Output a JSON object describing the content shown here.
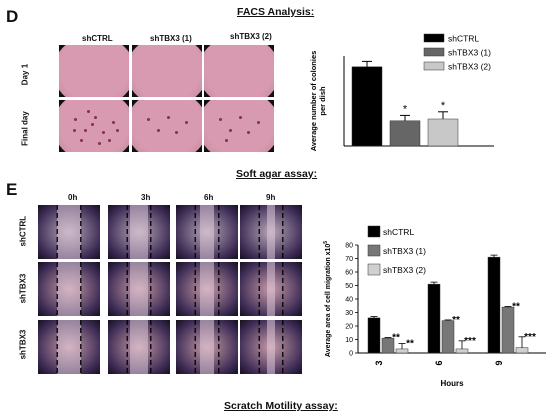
{
  "panel_d": {
    "letter": "D",
    "top_title": "FACS Analysis:",
    "bottom_title": "Soft agar assay:",
    "columns": [
      "shCTRL",
      "shTBX3 (1)",
      "shTBX3 (2)"
    ],
    "rows": [
      "Day 1",
      "Final day"
    ],
    "colors": {
      "plate": "#d79ab0",
      "plate_edge": "#b87c95",
      "colony": "#8a2e4a",
      "bg": "#101010"
    }
  },
  "panel_e": {
    "letter": "E",
    "bottom_title": "Scratch Motility assay:",
    "columns": [
      "0h",
      "3h",
      "6h",
      "9h"
    ],
    "rows": [
      "shCTRL",
      "shTBX3",
      "shTBX3"
    ],
    "colors": {
      "dark": "#3c2b54",
      "light": "#b9a7b8",
      "pink": "#c79aa8"
    }
  },
  "chart_data": [
    {
      "type": "bar",
      "categories": [
        "shCTRL",
        "shTBX3 (1)",
        "shTBX3 (2)"
      ],
      "values": [
        44,
        14,
        15
      ],
      "errors": [
        3,
        3,
        4
      ],
      "colors": [
        "#000000",
        "#666666",
        "#c8c8c8"
      ],
      "annotations": [
        "",
        "*",
        "*"
      ],
      "ylabel": "Average number of colonies per dish",
      "ylim": [
        0,
        50
      ],
      "legend": {
        "placement": "top-right",
        "entries": [
          "shCTRL",
          "shTBX3 (1)",
          "shTBX3 (2)"
        ]
      }
    },
    {
      "type": "bar",
      "categories": [
        "3",
        "6",
        "9"
      ],
      "xlabel": "Hours",
      "ylabel": "Average area of cell migration x10",
      "ylabel_exp": "5",
      "ylim": [
        0,
        80
      ],
      "yticks": [
        0,
        10,
        20,
        30,
        40,
        50,
        60,
        70,
        80
      ],
      "series": [
        {
          "name": "shCTRL",
          "color": "#000000",
          "values": [
            26,
            51,
            71
          ],
          "errors": [
            1,
            1.5,
            1.5
          ],
          "annotations": [
            "",
            "",
            ""
          ]
        },
        {
          "name": "shTBX3 (1)",
          "color": "#777777",
          "values": [
            11,
            24,
            34
          ],
          "errors": [
            0.5,
            0.5,
            0.5
          ],
          "annotations": [
            "**",
            "**",
            "**"
          ]
        },
        {
          "name": "shTBX3 (2)",
          "color": "#d0d0d0",
          "values": [
            3,
            3,
            4
          ],
          "errors": [
            4,
            6,
            8
          ],
          "annotations": [
            "**",
            "***",
            "***"
          ]
        }
      ],
      "legend": {
        "placement": "top-left",
        "entries": [
          "shCTRL",
          "shTBX3 (1)",
          "shTBX3 (2)"
        ]
      }
    }
  ]
}
